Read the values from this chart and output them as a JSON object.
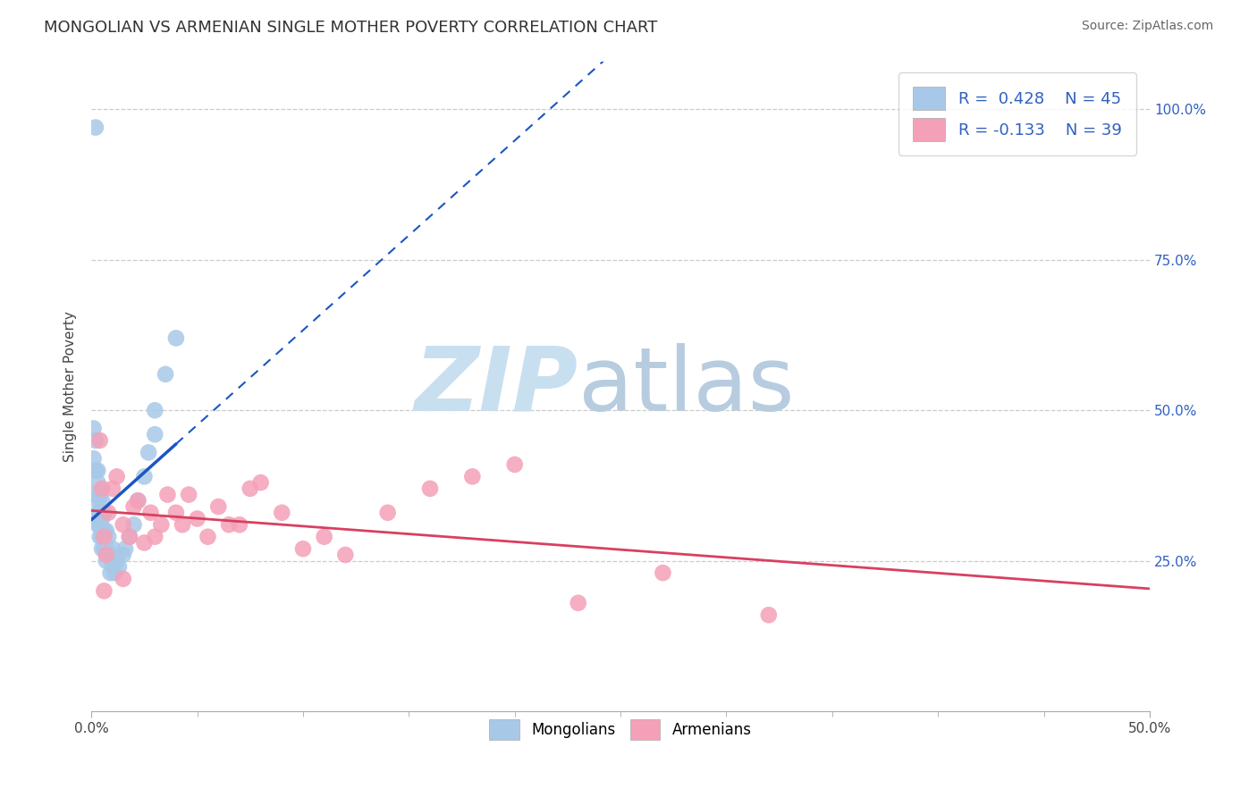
{
  "title": "MONGOLIAN VS ARMENIAN SINGLE MOTHER POVERTY CORRELATION CHART",
  "source": "Source: ZipAtlas.com",
  "ylabel": "Single Mother Poverty",
  "legend_mongolian": "Mongolians",
  "legend_armenian": "Armenians",
  "R_mongolian": 0.428,
  "N_mongolian": 45,
  "R_armenian": -0.133,
  "N_armenian": 39,
  "mongolian_color": "#a8c8e8",
  "armenian_color": "#f4a0b8",
  "trend_mongolian_color": "#1a56c4",
  "trend_armenian_color": "#d84060",
  "watermark_zip_color": "#c8dff0",
  "watermark_atlas_color": "#b8cce0",
  "right_tick_color": "#3060c0",
  "xlim": [
    0.0,
    0.5
  ],
  "ylim": [
    0.0,
    1.08
  ],
  "ytick_vals": [
    0.25,
    0.5,
    0.75,
    1.0
  ],
  "ytick_labels": [
    "25.0%",
    "50.0%",
    "75.0%",
    "100.0%"
  ],
  "mongolian_x": [
    0.001,
    0.001,
    0.002,
    0.002,
    0.002,
    0.003,
    0.003,
    0.003,
    0.003,
    0.003,
    0.004,
    0.004,
    0.004,
    0.004,
    0.005,
    0.005,
    0.005,
    0.005,
    0.006,
    0.006,
    0.006,
    0.007,
    0.007,
    0.007,
    0.008,
    0.008,
    0.009,
    0.009,
    0.01,
    0.01,
    0.011,
    0.012,
    0.013,
    0.015,
    0.016,
    0.018,
    0.02,
    0.022,
    0.025,
    0.027,
    0.03,
    0.03,
    0.035,
    0.04,
    0.002
  ],
  "mongolian_y": [
    0.42,
    0.47,
    0.36,
    0.4,
    0.45,
    0.31,
    0.33,
    0.35,
    0.38,
    0.4,
    0.29,
    0.31,
    0.33,
    0.36,
    0.27,
    0.29,
    0.32,
    0.35,
    0.27,
    0.3,
    0.33,
    0.25,
    0.27,
    0.3,
    0.26,
    0.29,
    0.23,
    0.26,
    0.24,
    0.27,
    0.23,
    0.25,
    0.24,
    0.26,
    0.27,
    0.29,
    0.31,
    0.35,
    0.39,
    0.43,
    0.46,
    0.5,
    0.56,
    0.62,
    0.97
  ],
  "armenian_x": [
    0.004,
    0.005,
    0.006,
    0.007,
    0.008,
    0.01,
    0.012,
    0.015,
    0.018,
    0.02,
    0.022,
    0.025,
    0.028,
    0.03,
    0.033,
    0.036,
    0.04,
    0.043,
    0.046,
    0.05,
    0.055,
    0.06,
    0.065,
    0.07,
    0.075,
    0.08,
    0.09,
    0.1,
    0.11,
    0.12,
    0.14,
    0.16,
    0.18,
    0.2,
    0.23,
    0.27,
    0.32,
    0.006,
    0.015
  ],
  "armenian_y": [
    0.45,
    0.37,
    0.29,
    0.26,
    0.33,
    0.37,
    0.39,
    0.31,
    0.29,
    0.34,
    0.35,
    0.28,
    0.33,
    0.29,
    0.31,
    0.36,
    0.33,
    0.31,
    0.36,
    0.32,
    0.29,
    0.34,
    0.31,
    0.31,
    0.37,
    0.38,
    0.33,
    0.27,
    0.29,
    0.26,
    0.33,
    0.37,
    0.39,
    0.41,
    0.18,
    0.23,
    0.16,
    0.2,
    0.22
  ]
}
